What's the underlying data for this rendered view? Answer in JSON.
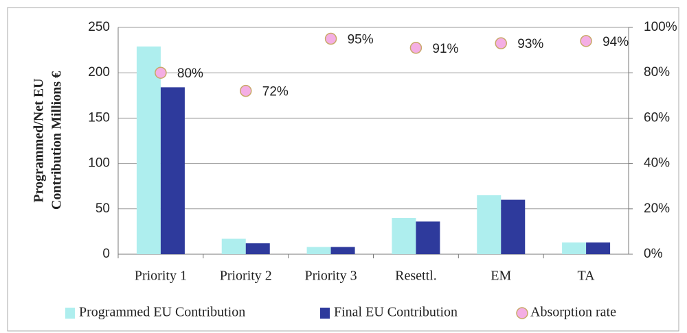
{
  "chart_data": {
    "type": "bar",
    "ylabel": [
      "Programmed/Net EU",
      "Contribution Millions €"
    ],
    "categories": [
      "Priority 1",
      "Priority 2",
      "Priority 3",
      "Resettl.",
      "EM",
      "TA"
    ],
    "series": [
      {
        "name": "Programmed EU Contribution",
        "color": "#aeeeee",
        "values": [
          229,
          17,
          8,
          40,
          65,
          13
        ]
      },
      {
        "name": "Final EU Contribution",
        "color": "#2e3a9c",
        "values": [
          184,
          12,
          8,
          36,
          60,
          13
        ]
      },
      {
        "name": "Absorption rate",
        "type": "scatter",
        "axis": "y2",
        "color": "#f4aee4",
        "values": [
          80,
          72,
          95,
          91,
          93,
          94
        ],
        "value_labels": [
          "80%",
          "72%",
          "95%",
          "91%",
          "93%",
          "94%"
        ]
      }
    ],
    "ylim": [
      0,
      250
    ],
    "yticks": [
      0,
      50,
      100,
      150,
      200,
      250
    ],
    "y2lim": [
      0,
      100
    ],
    "y2ticks": [
      {
        "value": 0,
        "label": "0%"
      },
      {
        "value": 20,
        "label": "20%"
      },
      {
        "value": 40,
        "label": "40%"
      },
      {
        "value": 60,
        "label": "60%"
      },
      {
        "value": 80,
        "label": "80%"
      },
      {
        "value": 100,
        "label": "100%"
      }
    ],
    "grid": true
  }
}
